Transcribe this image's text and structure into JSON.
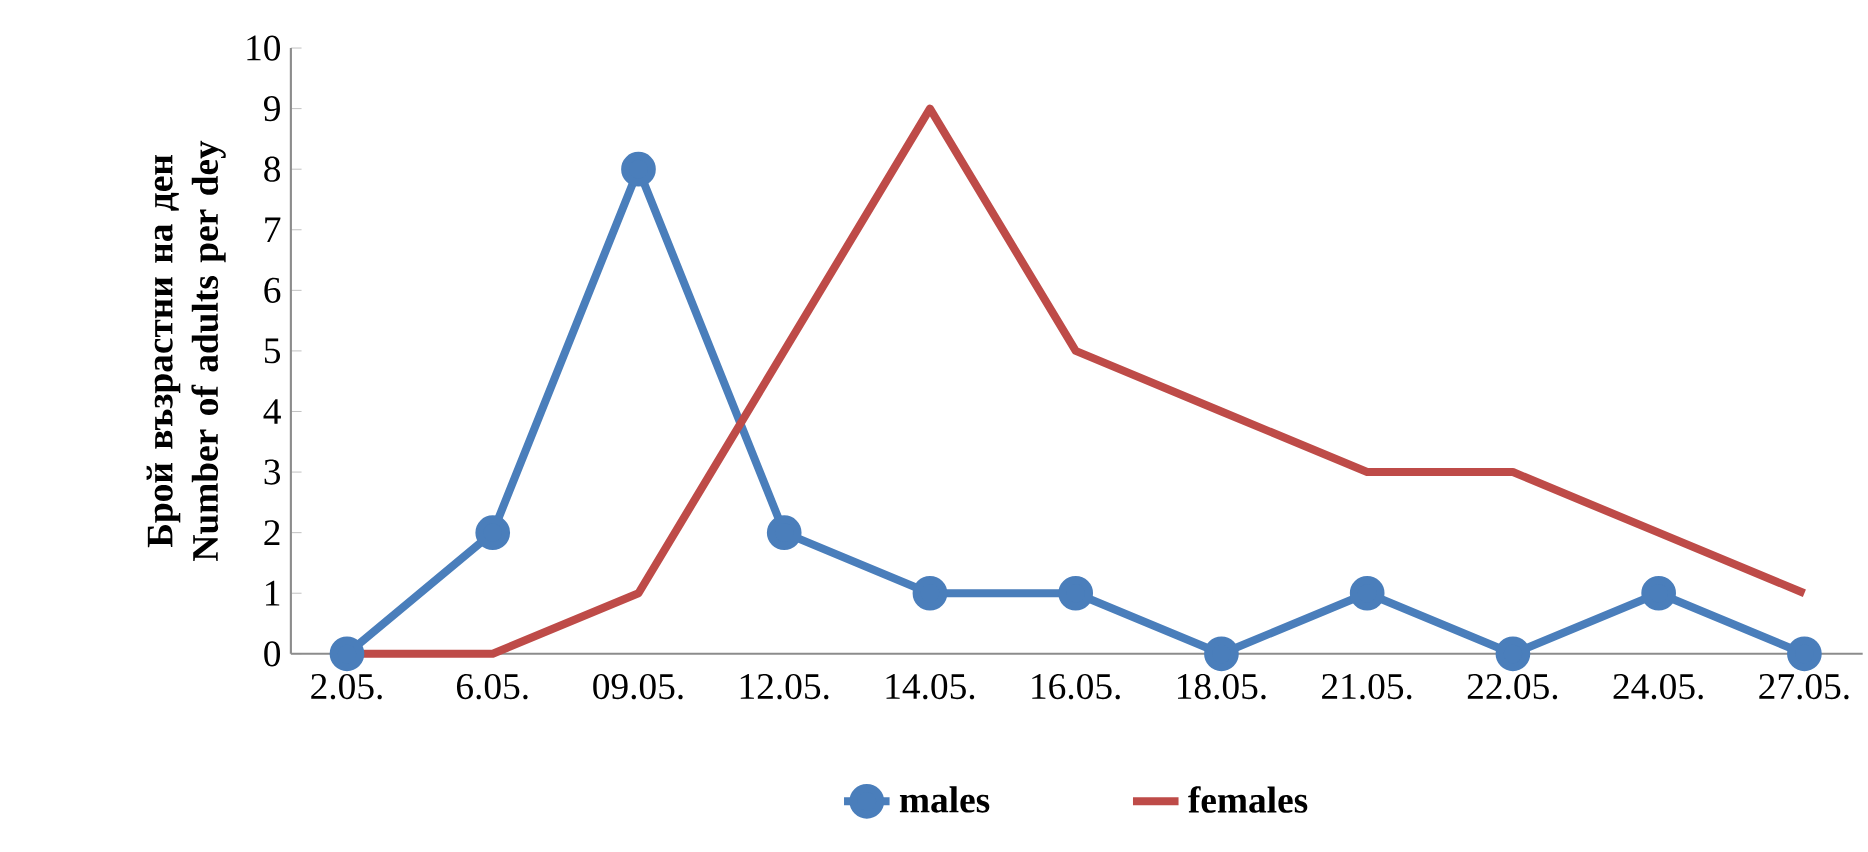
{
  "chart_data": {
    "type": "line",
    "ylabel": "Брой възрастни на ден Number of adults per dey",
    "categories": [
      "2.05.",
      "6.05.",
      "09.05.",
      "12.05.",
      "14.05.",
      "16.05.",
      "18.05.",
      "21.05.",
      "22.05.",
      "24.05.",
      "27.05."
    ],
    "series": [
      {
        "name": "males",
        "color": "#4a7ebb",
        "marker": "circle",
        "values": [
          0,
          2,
          8,
          2,
          1,
          1,
          0,
          1,
          0,
          1,
          0
        ]
      },
      {
        "name": "females",
        "color": "#be4b48",
        "marker": "none",
        "values": [
          0,
          0,
          1,
          5,
          9,
          5,
          4,
          3,
          3,
          2,
          1
        ]
      }
    ],
    "ylim": [
      0,
      10
    ],
    "yticks": [
      0,
      1,
      2,
      3,
      4,
      5,
      6,
      7,
      8,
      9,
      10
    ],
    "grid": false,
    "legend": "bottom",
    "line_style": "solid"
  }
}
